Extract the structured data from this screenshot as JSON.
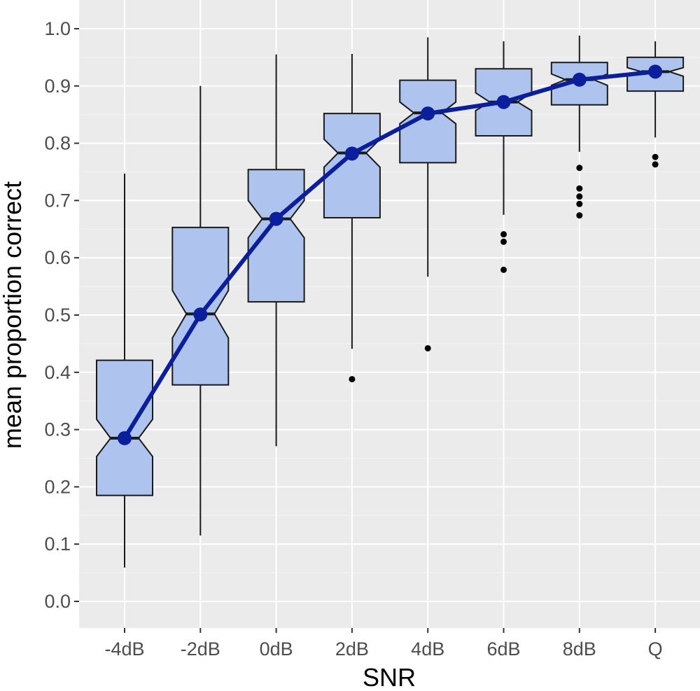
{
  "chart_data": {
    "type": "box",
    "title": "",
    "xlabel": "SNR",
    "ylabel": "mean proportion correct",
    "ylim": [
      -0.03,
      1.04
    ],
    "y_ticks": [
      "0.0",
      "0.1",
      "0.2",
      "0.3",
      "0.4",
      "0.5",
      "0.6",
      "0.7",
      "0.8",
      "0.9",
      "1.0"
    ],
    "categories": [
      "-4dB",
      "-2dB",
      "0dB",
      "2dB",
      "4dB",
      "6dB",
      "8dB",
      "Q"
    ],
    "grid": true,
    "legend": "none",
    "boxes": [
      {
        "category": "-4dB",
        "whisker_low": 0.059,
        "q1": 0.185,
        "median": 0.285,
        "q3": 0.421,
        "whisker_high": 0.747,
        "notch_low": 0.253,
        "notch_high": 0.318,
        "outliers": []
      },
      {
        "category": "-2dB",
        "whisker_low": 0.115,
        "q1": 0.378,
        "median": 0.502,
        "q3": 0.653,
        "whisker_high": 0.9,
        "notch_low": 0.46,
        "notch_high": 0.543,
        "outliers": []
      },
      {
        "category": "0dB",
        "whisker_low": 0.271,
        "q1": 0.523,
        "median": 0.668,
        "q3": 0.754,
        "whisker_high": 0.955,
        "notch_low": 0.635,
        "notch_high": 0.7,
        "outliers": []
      },
      {
        "category": "2dB",
        "whisker_low": 0.441,
        "q1": 0.67,
        "median": 0.783,
        "q3": 0.852,
        "whisker_high": 0.956,
        "notch_low": 0.758,
        "notch_high": 0.807,
        "outliers": [
          0.388
        ]
      },
      {
        "category": "4dB",
        "whisker_low": 0.567,
        "q1": 0.766,
        "median": 0.853,
        "q3": 0.91,
        "whisker_high": 0.985,
        "notch_low": 0.834,
        "notch_high": 0.872,
        "outliers": [
          0.442
        ]
      },
      {
        "category": "6dB",
        "whisker_low": 0.675,
        "q1": 0.813,
        "median": 0.872,
        "q3": 0.93,
        "whisker_high": 0.978,
        "notch_low": 0.857,
        "notch_high": 0.888,
        "outliers": [
          0.641,
          0.628,
          0.579
        ]
      },
      {
        "category": "8dB",
        "whisker_low": 0.785,
        "q1": 0.867,
        "median": 0.911,
        "q3": 0.941,
        "whisker_high": 0.988,
        "notch_low": 0.901,
        "notch_high": 0.921,
        "outliers": [
          0.757,
          0.721,
          0.707,
          0.694,
          0.674
        ]
      },
      {
        "category": "Q",
        "whisker_low": 0.81,
        "q1": 0.891,
        "median": 0.925,
        "q3": 0.95,
        "whisker_high": 0.978,
        "notch_low": 0.917,
        "notch_high": 0.932,
        "outliers": [
          0.776,
          0.763
        ]
      }
    ],
    "mean_series": {
      "values": [
        0.285,
        0.501,
        0.668,
        0.782,
        0.852,
        0.872,
        0.911,
        0.925
      ]
    },
    "colors": {
      "box_fill": "#aec4ee",
      "box_stroke": "#1a1a1a",
      "mean_line": "#0b1f9c",
      "panel_background": "#ebebeb",
      "grid_major": "#ffffff",
      "grid_minor": "#f5f5f5",
      "outlier": "#000000"
    }
  }
}
